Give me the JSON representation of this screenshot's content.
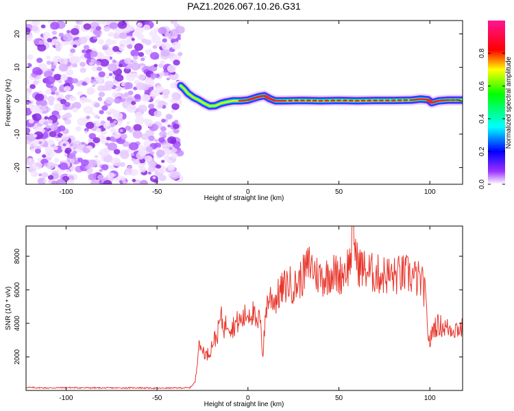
{
  "title": "PAZ1.2026.067.10.26.G31",
  "chart_data": [
    {
      "type": "heatmap",
      "title": "PAZ1.2026.067.10.26.G31",
      "xlabel": "Height of straight line (km)",
      "ylabel": "Frequency (Hz)",
      "xlim": [
        -122,
        118
      ],
      "ylim": [
        -25,
        24
      ],
      "xticks": [
        -100,
        -50,
        0,
        50,
        100
      ],
      "yticks": [
        -20,
        -10,
        0,
        10,
        20
      ],
      "noise_region_x": [
        -122,
        -37
      ],
      "ridge": {
        "x": [
          -37,
          -35,
          -33,
          -30,
          -27,
          -24,
          -21,
          -18,
          -15,
          -12,
          -8,
          -4,
          0,
          3,
          6,
          9,
          12,
          15,
          20,
          30,
          40,
          50,
          60,
          70,
          80,
          90,
          95,
          99,
          101,
          105,
          110,
          118
        ],
        "frequency_hz": [
          4.5,
          3.5,
          2.2,
          1.0,
          0.2,
          -0.8,
          -1.6,
          -1.5,
          -0.8,
          -0.4,
          0.0,
          0.0,
          0.2,
          0.7,
          1.2,
          1.5,
          0.6,
          0.0,
          0.0,
          0.1,
          0.0,
          0.1,
          0.0,
          0.1,
          0.1,
          0.2,
          0.5,
          0.3,
          -0.6,
          0.0,
          0.2,
          0.2
        ]
      },
      "colorbar": {
        "label": "Normalized spectral amplitude",
        "range": [
          0,
          1
        ],
        "ticks": [
          0.0,
          0.2,
          0.4,
          0.6,
          0.8
        ],
        "tick_labels": [
          "0.0",
          "0.2",
          "0.4",
          "0.6",
          "0.8"
        ]
      }
    },
    {
      "type": "line",
      "xlabel": "Height of straight line (km)",
      "ylabel": "SNR (10 * v/v)",
      "xlim": [
        -122,
        118
      ],
      "ylim": [
        0,
        9800
      ],
      "xticks": [
        -100,
        -50,
        0,
        50,
        100
      ],
      "yticks": [
        2000,
        4000,
        6000,
        8000
      ],
      "series": [
        {
          "name": "SNR",
          "color": "#e8352b",
          "x": [
            -122,
            -110,
            -100,
            -90,
            -80,
            -70,
            -60,
            -50,
            -40,
            -32,
            -29,
            -28,
            -27,
            -26,
            -25,
            -23,
            -21,
            -19,
            -17,
            -15,
            -13,
            -11,
            -9,
            -7,
            -5,
            -3,
            -1,
            1,
            3,
            5,
            7,
            8,
            10,
            12,
            15,
            18,
            22,
            26,
            30,
            34,
            38,
            42,
            46,
            50,
            54,
            56,
            58,
            60,
            64,
            68,
            72,
            76,
            80,
            84,
            88,
            92,
            95,
            97,
            98,
            99,
            100,
            102,
            105,
            110,
            114,
            118
          ],
          "values": [
            180,
            150,
            170,
            160,
            150,
            150,
            160,
            130,
            150,
            160,
            500,
            1500,
            3300,
            2300,
            2500,
            2100,
            2300,
            3000,
            3200,
            4400,
            3700,
            4200,
            3700,
            4000,
            4100,
            4200,
            4500,
            4700,
            4600,
            3700,
            4700,
            1800,
            5000,
            5600,
            5400,
            5900,
            6400,
            6200,
            6800,
            7600,
            6900,
            6700,
            7100,
            6800,
            7300,
            7600,
            9600,
            7600,
            7200,
            7000,
            6900,
            6900,
            6800,
            6900,
            6900,
            6700,
            6500,
            6000,
            4800,
            3500,
            2800,
            3800,
            3900,
            3700,
            3700,
            3700
          ]
        }
      ]
    }
  ]
}
